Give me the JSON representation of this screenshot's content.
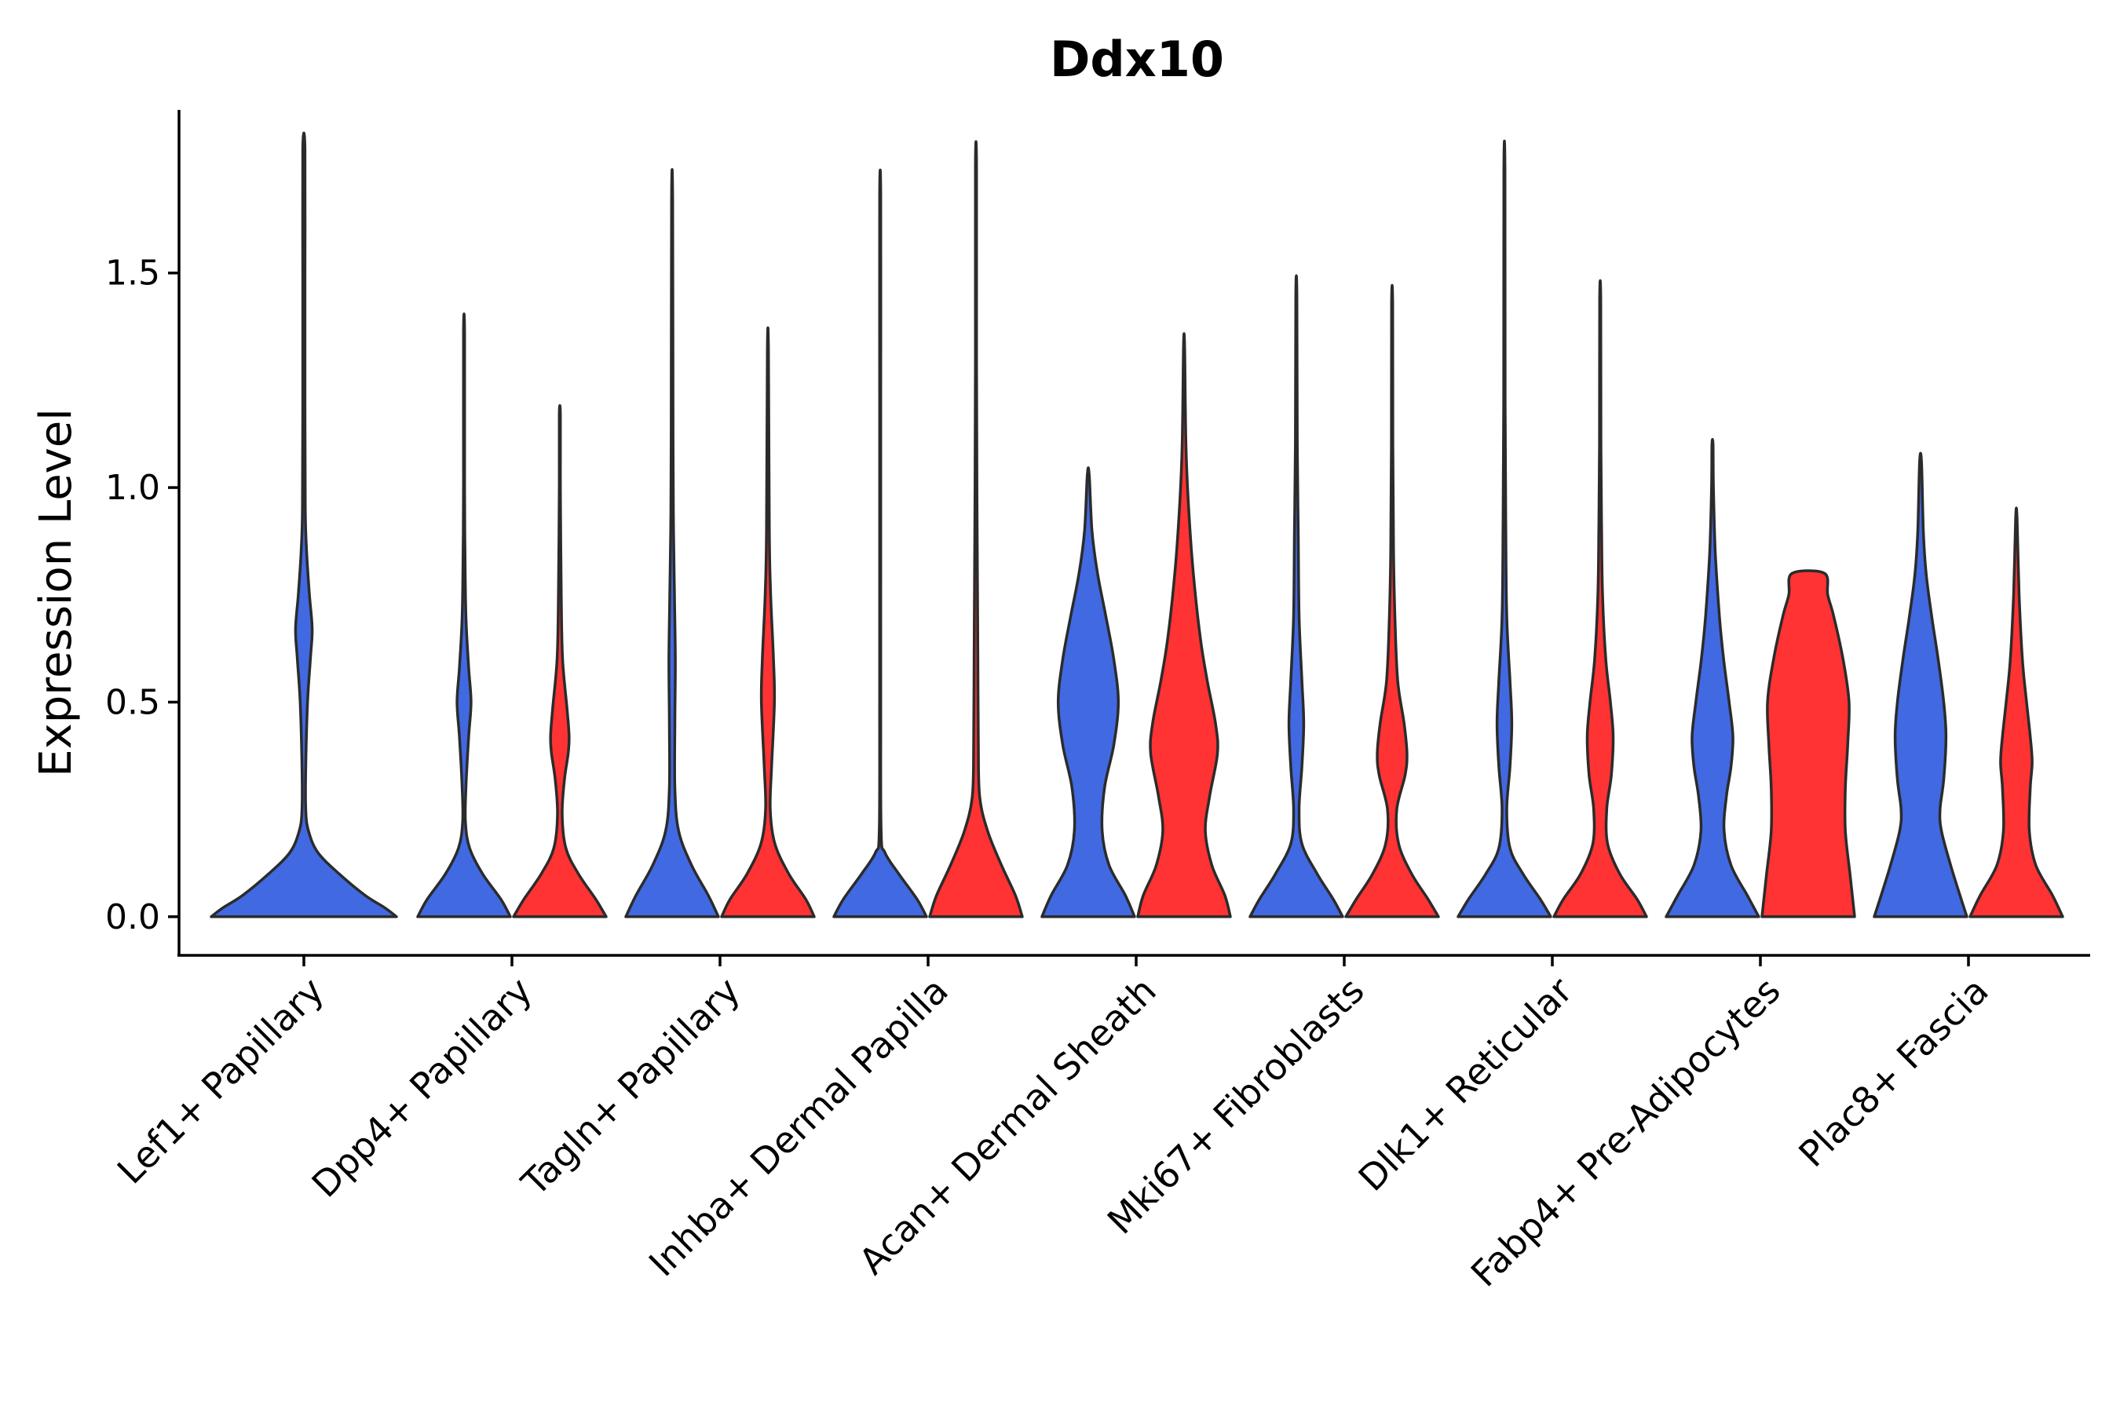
{
  "chart_data": {
    "type": "violin",
    "title": "Ddx10",
    "xlabel": "",
    "ylabel": "Expression Level",
    "ylim": [
      -0.09,
      1.88
    ],
    "yticks": [
      0.0,
      0.5,
      1.0,
      1.5
    ],
    "ytick_labels": [
      "0.0",
      "0.5",
      "1.0",
      "1.5"
    ],
    "grid": false,
    "legend": "none",
    "split_colors": [
      "#4169E1",
      "#FF3333"
    ],
    "categories": [
      "Lef1+ Papillary",
      "Dpp4+ Papillary",
      "Tagln+ Papillary",
      "Inhba+ Dermal Papilla",
      "Acan+ Dermal Sheath",
      "Mki67+ Fibroblasts",
      "Dlk1+ Reticular",
      "Fabp4+ Pre-Adipocytes",
      "Plac8+ Fascia"
    ],
    "violins": [
      {
        "category": "Lef1+ Papillary",
        "group": "blue",
        "max": 1.79,
        "profile": [
          [
            0,
            1
          ],
          [
            0.02,
            0.88
          ],
          [
            0.05,
            0.66
          ],
          [
            0.1,
            0.38
          ],
          [
            0.15,
            0.15
          ],
          [
            0.2,
            0.05
          ],
          [
            0.25,
            0.02
          ],
          [
            0.35,
            0.02
          ],
          [
            0.5,
            0.04
          ],
          [
            0.6,
            0.07
          ],
          [
            0.67,
            0.09
          ],
          [
            0.75,
            0.06
          ],
          [
            0.85,
            0.03
          ],
          [
            0.95,
            0.015
          ],
          [
            1.2,
            0.01
          ],
          [
            1.5,
            0.006
          ],
          [
            1.79,
            0.004
          ]
        ]
      },
      {
        "category": "Dpp4+ Papillary",
        "group": "blue",
        "max": 1.36,
        "profile": [
          [
            0,
            1
          ],
          [
            0.04,
            0.8
          ],
          [
            0.1,
            0.4
          ],
          [
            0.16,
            0.12
          ],
          [
            0.22,
            0.03
          ],
          [
            0.3,
            0.04
          ],
          [
            0.42,
            0.1
          ],
          [
            0.5,
            0.15
          ],
          [
            0.58,
            0.1
          ],
          [
            0.7,
            0.04
          ],
          [
            0.85,
            0.02
          ],
          [
            1.0,
            0.012
          ],
          [
            1.36,
            0.005
          ]
        ]
      },
      {
        "category": "Dpp4+ Papillary",
        "group": "red",
        "max": 1.17,
        "profile": [
          [
            0,
            1
          ],
          [
            0.04,
            0.78
          ],
          [
            0.1,
            0.4
          ],
          [
            0.16,
            0.13
          ],
          [
            0.24,
            0.05
          ],
          [
            0.32,
            0.1
          ],
          [
            0.38,
            0.18
          ],
          [
            0.42,
            0.2
          ],
          [
            0.48,
            0.16
          ],
          [
            0.6,
            0.06
          ],
          [
            0.75,
            0.03
          ],
          [
            1.0,
            0.012
          ],
          [
            1.17,
            0.006
          ]
        ]
      },
      {
        "category": "Tagln+ Papillary",
        "group": "blue",
        "max": 1.67,
        "profile": [
          [
            0,
            1
          ],
          [
            0.05,
            0.78
          ],
          [
            0.12,
            0.42
          ],
          [
            0.2,
            0.14
          ],
          [
            0.3,
            0.06
          ],
          [
            0.45,
            0.06
          ],
          [
            0.6,
            0.07
          ],
          [
            0.75,
            0.05
          ],
          [
            0.9,
            0.03
          ],
          [
            1.1,
            0.02
          ],
          [
            1.67,
            0.006
          ]
        ]
      },
      {
        "category": "Tagln+ Papillary",
        "group": "red",
        "max": 1.32,
        "profile": [
          [
            0,
            1
          ],
          [
            0.04,
            0.82
          ],
          [
            0.1,
            0.45
          ],
          [
            0.17,
            0.15
          ],
          [
            0.25,
            0.05
          ],
          [
            0.35,
            0.08
          ],
          [
            0.5,
            0.14
          ],
          [
            0.6,
            0.12
          ],
          [
            0.75,
            0.06
          ],
          [
            0.9,
            0.03
          ],
          [
            1.32,
            0.006
          ]
        ]
      },
      {
        "category": "Inhba+ Dermal Papilla",
        "group": "blue",
        "max": 1.68,
        "profile": [
          [
            0,
            1
          ],
          [
            0.04,
            0.8
          ],
          [
            0.1,
            0.4
          ],
          [
            0.15,
            0.1
          ],
          [
            0.2,
            0.02
          ],
          [
            0.5,
            0.012
          ],
          [
            0.85,
            0.012
          ],
          [
            1.2,
            0.008
          ],
          [
            1.68,
            0.005
          ]
        ]
      },
      {
        "category": "Inhba+ Dermal Papilla",
        "group": "red",
        "max": 1.75,
        "profile": [
          [
            0,
            1
          ],
          [
            0.05,
            0.85
          ],
          [
            0.12,
            0.55
          ],
          [
            0.2,
            0.25
          ],
          [
            0.28,
            0.08
          ],
          [
            0.4,
            0.05
          ],
          [
            0.6,
            0.04
          ],
          [
            0.8,
            0.03
          ],
          [
            1.0,
            0.02
          ],
          [
            1.3,
            0.012
          ],
          [
            1.75,
            0.006
          ]
        ]
      },
      {
        "category": "Acan+ Dermal Sheath",
        "group": "blue",
        "max": 1.03,
        "profile": [
          [
            0,
            1
          ],
          [
            0.05,
            0.8
          ],
          [
            0.12,
            0.45
          ],
          [
            0.2,
            0.3
          ],
          [
            0.3,
            0.35
          ],
          [
            0.4,
            0.55
          ],
          [
            0.5,
            0.65
          ],
          [
            0.6,
            0.55
          ],
          [
            0.7,
            0.38
          ],
          [
            0.8,
            0.2
          ],
          [
            0.9,
            0.08
          ],
          [
            1.03,
            0.02
          ]
        ]
      },
      {
        "category": "Acan+ Dermal Sheath",
        "group": "red",
        "max": 1.33,
        "profile": [
          [
            0,
            1
          ],
          [
            0.05,
            0.88
          ],
          [
            0.12,
            0.6
          ],
          [
            0.2,
            0.46
          ],
          [
            0.28,
            0.55
          ],
          [
            0.38,
            0.72
          ],
          [
            0.45,
            0.68
          ],
          [
            0.55,
            0.5
          ],
          [
            0.65,
            0.35
          ],
          [
            0.8,
            0.2
          ],
          [
            0.95,
            0.1
          ],
          [
            1.1,
            0.04
          ],
          [
            1.33,
            0.01
          ]
        ]
      },
      {
        "category": "Mki67+ Fibroblasts",
        "group": "blue",
        "max": 1.45,
        "profile": [
          [
            0,
            1
          ],
          [
            0.04,
            0.8
          ],
          [
            0.1,
            0.45
          ],
          [
            0.17,
            0.12
          ],
          [
            0.25,
            0.06
          ],
          [
            0.35,
            0.12
          ],
          [
            0.45,
            0.16
          ],
          [
            0.55,
            0.12
          ],
          [
            0.7,
            0.06
          ],
          [
            0.9,
            0.04
          ],
          [
            1.1,
            0.02
          ],
          [
            1.45,
            0.006
          ]
        ]
      },
      {
        "category": "Mki67+ Fibroblasts",
        "group": "red",
        "max": 1.43,
        "profile": [
          [
            0,
            1
          ],
          [
            0.04,
            0.78
          ],
          [
            0.1,
            0.42
          ],
          [
            0.17,
            0.14
          ],
          [
            0.25,
            0.1
          ],
          [
            0.33,
            0.28
          ],
          [
            0.38,
            0.32
          ],
          [
            0.45,
            0.26
          ],
          [
            0.55,
            0.12
          ],
          [
            0.7,
            0.06
          ],
          [
            0.85,
            0.03
          ],
          [
            1.1,
            0.015
          ],
          [
            1.43,
            0.006
          ]
        ]
      },
      {
        "category": "Dlk1+ Reticular",
        "group": "blue",
        "max": 1.74,
        "profile": [
          [
            0,
            1
          ],
          [
            0.04,
            0.78
          ],
          [
            0.1,
            0.4
          ],
          [
            0.16,
            0.12
          ],
          [
            0.25,
            0.05
          ],
          [
            0.35,
            0.12
          ],
          [
            0.45,
            0.16
          ],
          [
            0.55,
            0.12
          ],
          [
            0.7,
            0.05
          ],
          [
            0.9,
            0.03
          ],
          [
            1.2,
            0.015
          ],
          [
            1.74,
            0.005
          ]
        ]
      },
      {
        "category": "Dlk1+ Reticular",
        "group": "red",
        "max": 1.44,
        "profile": [
          [
            0,
            1
          ],
          [
            0.04,
            0.8
          ],
          [
            0.1,
            0.42
          ],
          [
            0.17,
            0.16
          ],
          [
            0.25,
            0.14
          ],
          [
            0.33,
            0.24
          ],
          [
            0.42,
            0.28
          ],
          [
            0.5,
            0.22
          ],
          [
            0.6,
            0.12
          ],
          [
            0.75,
            0.05
          ],
          [
            0.9,
            0.03
          ],
          [
            1.1,
            0.015
          ],
          [
            1.44,
            0.006
          ]
        ]
      },
      {
        "category": "Fabp4+ Pre-Adipocytes",
        "group": "blue",
        "max": 1.1,
        "profile": [
          [
            0,
            1
          ],
          [
            0.05,
            0.75
          ],
          [
            0.12,
            0.4
          ],
          [
            0.2,
            0.25
          ],
          [
            0.28,
            0.3
          ],
          [
            0.35,
            0.4
          ],
          [
            0.42,
            0.44
          ],
          [
            0.5,
            0.36
          ],
          [
            0.6,
            0.24
          ],
          [
            0.7,
            0.15
          ],
          [
            0.85,
            0.06
          ],
          [
            1.0,
            0.02
          ],
          [
            1.1,
            0.01
          ]
        ]
      },
      {
        "category": "Fabp4+ Pre-Adipocytes",
        "group": "red",
        "max": 0.8,
        "profile": [
          [
            0,
            1
          ],
          [
            0.1,
            0.9
          ],
          [
            0.2,
            0.8
          ],
          [
            0.3,
            0.8
          ],
          [
            0.4,
            0.85
          ],
          [
            0.5,
            0.88
          ],
          [
            0.6,
            0.75
          ],
          [
            0.7,
            0.55
          ],
          [
            0.75,
            0.42
          ],
          [
            0.8,
            0.35
          ]
        ]
      },
      {
        "category": "Plac8+ Fascia",
        "group": "blue",
        "max": 1.06,
        "profile": [
          [
            0,
            1
          ],
          [
            0.05,
            0.85
          ],
          [
            0.12,
            0.65
          ],
          [
            0.2,
            0.45
          ],
          [
            0.25,
            0.42
          ],
          [
            0.32,
            0.5
          ],
          [
            0.42,
            0.55
          ],
          [
            0.5,
            0.5
          ],
          [
            0.6,
            0.38
          ],
          [
            0.7,
            0.24
          ],
          [
            0.8,
            0.12
          ],
          [
            0.9,
            0.06
          ],
          [
            1.06,
            0.02
          ]
        ]
      },
      {
        "category": "Plac8+ Fascia",
        "group": "red",
        "max": 0.93,
        "profile": [
          [
            0,
            1
          ],
          [
            0.05,
            0.78
          ],
          [
            0.12,
            0.42
          ],
          [
            0.2,
            0.28
          ],
          [
            0.3,
            0.3
          ],
          [
            0.36,
            0.34
          ],
          [
            0.42,
            0.3
          ],
          [
            0.5,
            0.22
          ],
          [
            0.6,
            0.13
          ],
          [
            0.75,
            0.06
          ],
          [
            0.93,
            0.015
          ]
        ]
      }
    ]
  }
}
